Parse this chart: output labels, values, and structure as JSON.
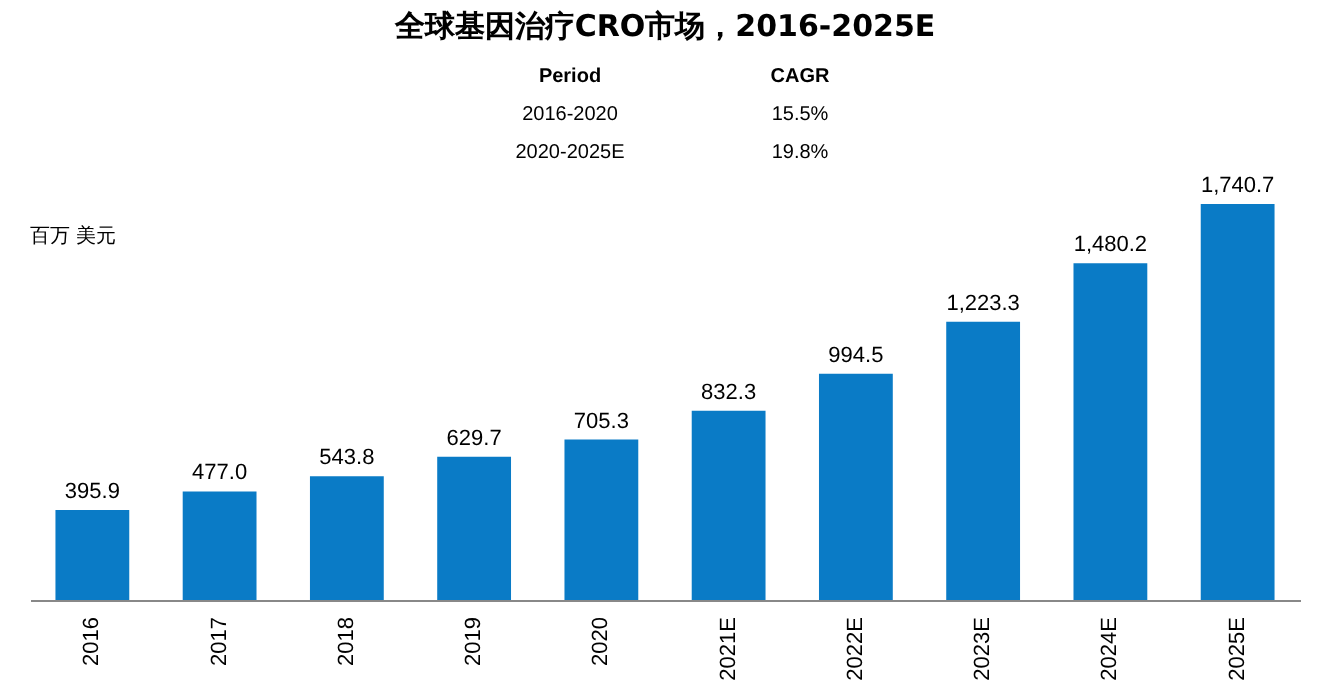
{
  "chart_data": {
    "type": "bar",
    "title": "全球基因治疗CRO市场，2016-2025E",
    "ylabel": "百万 美元",
    "categories": [
      "2016",
      "2017",
      "2018",
      "2019",
      "2020",
      "2021E",
      "2022E",
      "2023E",
      "2024E",
      "2025E"
    ],
    "values": [
      395.9,
      477.0,
      543.8,
      629.7,
      705.3,
      832.3,
      994.5,
      1223.3,
      1480.2,
      1740.7
    ],
    "value_labels": [
      "395.9",
      "477.0",
      "543.8",
      "629.7",
      "705.3",
      "832.3",
      "994.5",
      "1,223.3",
      "1,480.2",
      "1,740.7"
    ],
    "color": "#0a7bc6",
    "annotations": [
      "Period",
      "CAGR",
      "2016-2020",
      "15.5%",
      "2020-2025E",
      "19.8%"
    ]
  }
}
